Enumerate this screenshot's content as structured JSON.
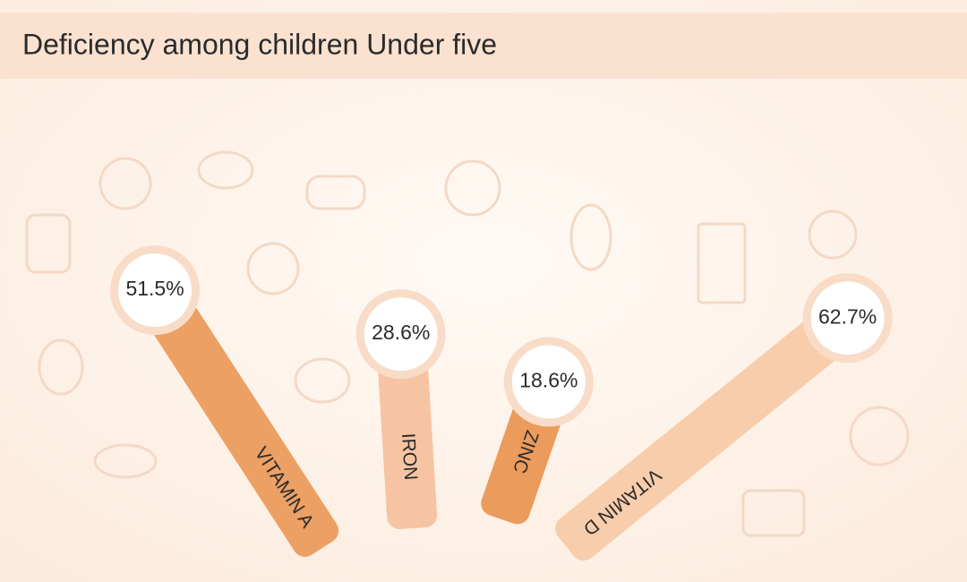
{
  "chart_data": {
    "type": "bar",
    "title": "Deficiency among children Under five",
    "categories": [
      "VITAMIN A",
      "IRON",
      "ZINC",
      "VITAMIN D"
    ],
    "values": [
      51.5,
      28.6,
      18.6,
      62.7
    ],
    "value_labels": [
      "51.5%",
      "28.6%",
      "18.6%",
      "62.7%"
    ],
    "colors": [
      "#eca064",
      "#f6c4a2",
      "#eb9b5b",
      "#f8cdab"
    ]
  }
}
